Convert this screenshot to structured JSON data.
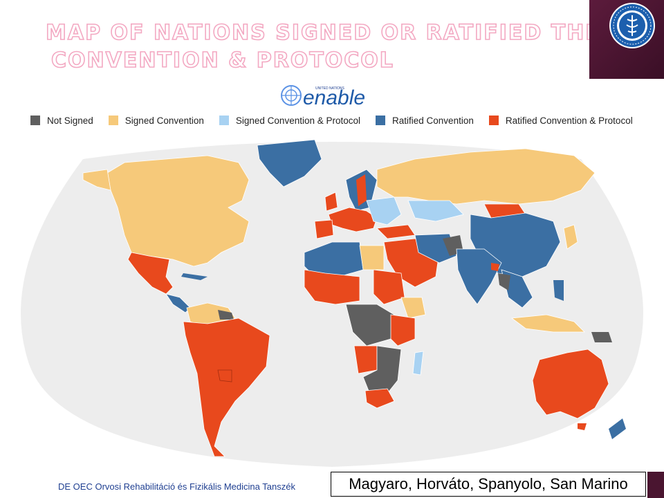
{
  "title": {
    "line1": "MAP OF NATIONS SIGNED OR RATIFIED THE",
    "line2": "CONVENTION & PROTOCOL"
  },
  "logo": {
    "small_text": "UNITED NATIONS",
    "brand": "enable",
    "emblem": "un-emblem-icon"
  },
  "seal": {
    "icon": "university-seal-icon"
  },
  "legend": [
    {
      "label": "Not Signed",
      "color": "#5f5f5f"
    },
    {
      "label": "Signed Convention",
      "color": "#f6c97a"
    },
    {
      "label": "Signed Convention & Protocol",
      "color": "#a8d2f2"
    },
    {
      "label": "Ratified Convention",
      "color": "#3b6fa3"
    },
    {
      "label": "Ratified Convention & Protocol",
      "color": "#e8491d"
    }
  ],
  "map": {
    "ocean_color": "#ededed",
    "regions": [
      {
        "name": "North America",
        "status": "Signed Convention"
      },
      {
        "name": "Greenland",
        "status": "Ratified Convention"
      },
      {
        "name": "Mexico",
        "status": "Ratified Convention & Protocol"
      },
      {
        "name": "South America",
        "status": "Ratified Convention & Protocol"
      },
      {
        "name": "Russia",
        "status": "Signed Convention"
      },
      {
        "name": "China",
        "status": "Ratified Convention"
      },
      {
        "name": "India",
        "status": "Ratified Convention"
      },
      {
        "name": "Australia",
        "status": "Ratified Convention & Protocol"
      },
      {
        "name": "Africa",
        "status": "Mixed"
      }
    ]
  },
  "footer": {
    "left_text": "DE OEC Orvosi Rehabilitáció és Fizikális Medicina Tanszék",
    "right_text": "Magyaro, Horváto, Spanyolo, San Marino"
  }
}
